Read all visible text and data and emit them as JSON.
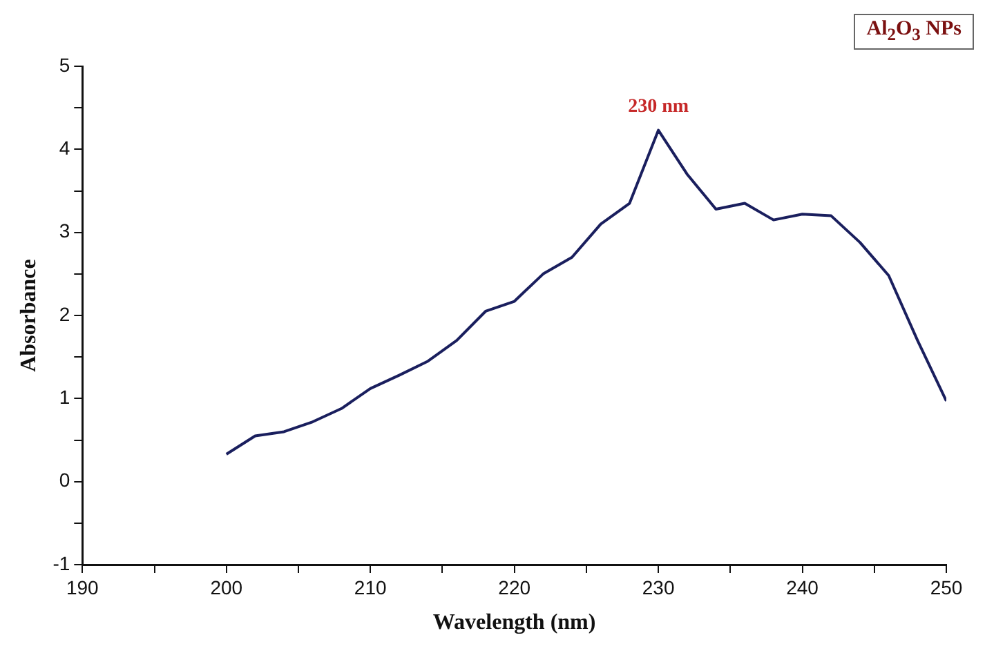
{
  "chart_data": {
    "type": "line",
    "xlabel": "Wavelength (nm)",
    "ylabel": "Absorbance",
    "x": [
      200,
      202,
      204,
      206,
      208,
      210,
      212,
      214,
      216,
      218,
      220,
      222,
      224,
      226,
      228,
      230,
      232,
      234,
      236,
      238,
      240,
      242,
      244,
      246,
      248,
      250
    ],
    "series": [
      {
        "color": "#1a1f5e",
        "values": [
          0.33,
          0.55,
          0.6,
          0.72,
          0.88,
          1.12,
          1.28,
          1.45,
          1.7,
          2.05,
          2.17,
          2.5,
          2.7,
          3.1,
          3.35,
          4.23,
          3.7,
          3.28,
          3.35,
          3.15,
          3.22,
          3.2,
          2.88,
          2.48,
          1.7,
          0.97
        ]
      }
    ],
    "xlim": [
      190,
      250
    ],
    "xticks": [
      190,
      {
        "value": 195,
        "label": null
      },
      200,
      {
        "value": 205,
        "label": null
      },
      210,
      {
        "value": 215,
        "label": null
      },
      220,
      {
        "value": 225,
        "label": null
      },
      230,
      {
        "value": 235,
        "label": null
      },
      240,
      {
        "value": 245,
        "label": null
      },
      250
    ],
    "ylim": [
      -1,
      5
    ],
    "yticks": [
      -1,
      {
        "value": -0.5,
        "label": null
      },
      0,
      {
        "value": 0.5,
        "label": null
      },
      1,
      {
        "value": 1.5,
        "label": null
      },
      2,
      {
        "value": 2.5,
        "label": null
      },
      3,
      {
        "value": 3.5,
        "label": null
      },
      4,
      {
        "value": 4.5,
        "label": null
      },
      5
    ],
    "annotations": [
      "Al$_{2}$O$_{3}$ NPs",
      {
        "text": "230 nm",
        "x": 230,
        "y": 4.23
      }
    ],
    "grid": false,
    "legend": false,
    "marker": "none",
    "line_style": "solid"
  }
}
